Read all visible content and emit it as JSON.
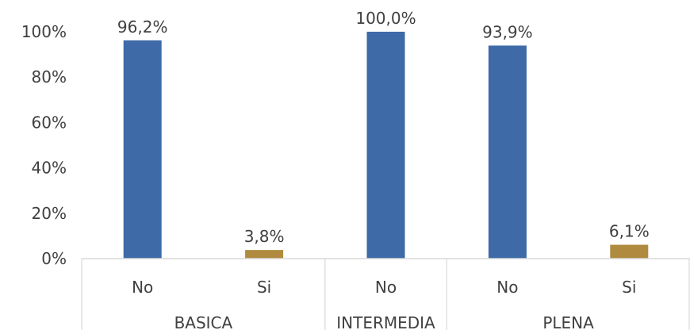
{
  "chart_data": {
    "type": "bar",
    "title": "",
    "xlabel": "",
    "ylabel": "",
    "ylim": [
      0,
      100
    ],
    "y_ticks": [
      "0%",
      "20%",
      "40%",
      "60%",
      "80%",
      "100%"
    ],
    "y_tick_values": [
      0,
      20,
      40,
      60,
      80,
      100
    ],
    "grid": false,
    "legend": "none",
    "groups": [
      {
        "name": "BASICA",
        "categories": [
          "No",
          "Si"
        ]
      },
      {
        "name": "INTERMEDIA",
        "categories": [
          "No"
        ]
      },
      {
        "name": "PLENA",
        "categories": [
          "No",
          "Si"
        ]
      }
    ],
    "bars": [
      {
        "group": "BASICA",
        "category": "No",
        "value": 96.2,
        "label": "96,2%",
        "color": "#3e6aa8"
      },
      {
        "group": "BASICA",
        "category": "Si",
        "value": 3.8,
        "label": "3,8%",
        "color": "#b08a3e"
      },
      {
        "group": "INTERMEDIA",
        "category": "No",
        "value": 100.0,
        "label": "100,0%",
        "color": "#3e6aa8"
      },
      {
        "group": "PLENA",
        "category": "No",
        "value": 93.9,
        "label": "93,9%",
        "color": "#3e6aa8"
      },
      {
        "group": "PLENA",
        "category": "Si",
        "value": 6.1,
        "label": "6,1%",
        "color": "#b08a3e"
      }
    ],
    "colors": {
      "no": "#3e6aa8",
      "si": "#b08a3e",
      "axis": "#d9d9d9",
      "text": "#404040"
    }
  }
}
